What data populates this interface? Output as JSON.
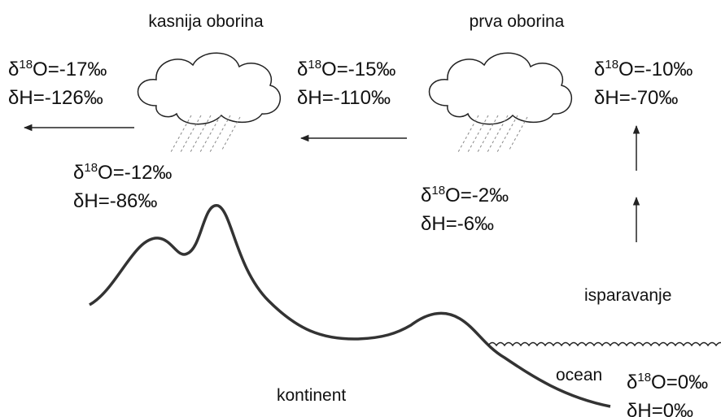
{
  "titles": {
    "left_cloud": "kasnija oborina",
    "right_cloud": "prva oborina"
  },
  "labels": {
    "left_cloud": {
      "o18": {
        "pre": "δ",
        "sup": "18",
        "post": "O=-17‰"
      },
      "h": "δH=-126‰"
    },
    "middle_cloud": {
      "o18": {
        "pre": "δ",
        "sup": "18",
        "post": "O=-15‰"
      },
      "h": "δH=-110‰"
    },
    "vapour": {
      "o18": {
        "pre": "δ",
        "sup": "18",
        "post": "O=-10‰"
      },
      "h": "δH=-70‰"
    },
    "left_rain": {
      "o18": {
        "pre": "δ",
        "sup": "18",
        "post": "O=-12‰"
      },
      "h": "δH=-86‰"
    },
    "right_rain": {
      "o18": {
        "pre": "δ",
        "sup": "18",
        "post": "O=-2‰"
      },
      "h": "δH=-6‰"
    },
    "ocean": {
      "o18": {
        "pre": "δ",
        "sup": "18",
        "post": "O=0‰"
      },
      "h": "δH=0‰"
    }
  },
  "places": {
    "evaporation": "isparavanje",
    "ocean": "ocean",
    "continent": "kontinent"
  }
}
